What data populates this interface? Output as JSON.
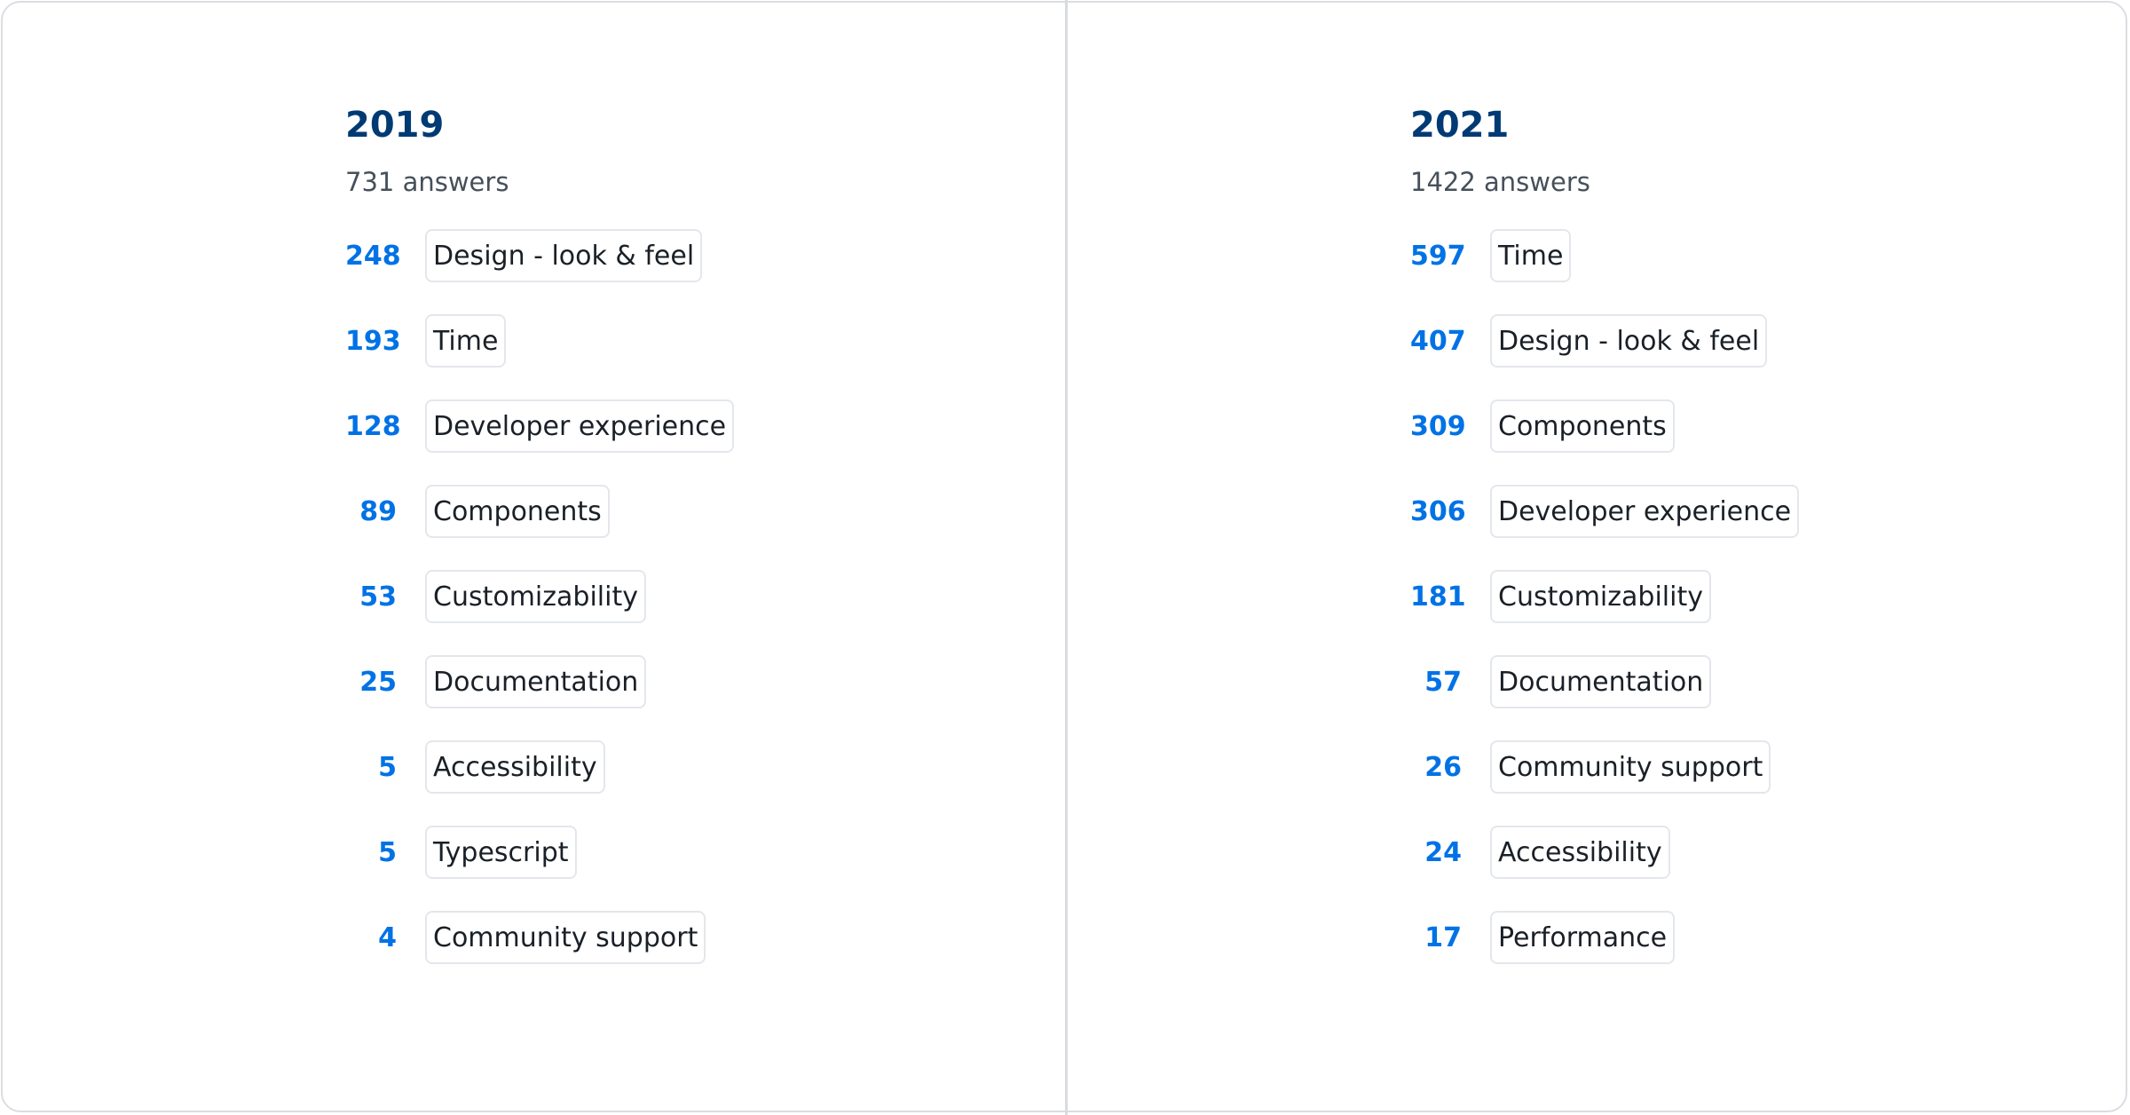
{
  "panels": [
    {
      "year": "2019",
      "answers": "731 answers",
      "items": [
        {
          "count": "248",
          "label": "Design - look & feel"
        },
        {
          "count": "193",
          "label": "Time"
        },
        {
          "count": "128",
          "label": "Developer experience"
        },
        {
          "count": "89",
          "label": "Components"
        },
        {
          "count": "53",
          "label": "Customizability"
        },
        {
          "count": "25",
          "label": "Documentation"
        },
        {
          "count": "5",
          "label": "Accessibility"
        },
        {
          "count": "5",
          "label": "Typescript"
        },
        {
          "count": "4",
          "label": "Community support"
        }
      ]
    },
    {
      "year": "2021",
      "answers": "1422 answers",
      "items": [
        {
          "count": "597",
          "label": "Time"
        },
        {
          "count": "407",
          "label": "Design - look & feel"
        },
        {
          "count": "309",
          "label": "Components"
        },
        {
          "count": "306",
          "label": "Developer experience"
        },
        {
          "count": "181",
          "label": "Customizability"
        },
        {
          "count": "57",
          "label": "Documentation"
        },
        {
          "count": "26",
          "label": "Community support"
        },
        {
          "count": "24",
          "label": "Accessibility"
        },
        {
          "count": "17",
          "label": "Performance"
        }
      ]
    }
  ],
  "colors": {
    "title": "#003a75",
    "count": "#0072e5",
    "subtitle": "#46505a",
    "chip_border": "#e3e7ec"
  }
}
